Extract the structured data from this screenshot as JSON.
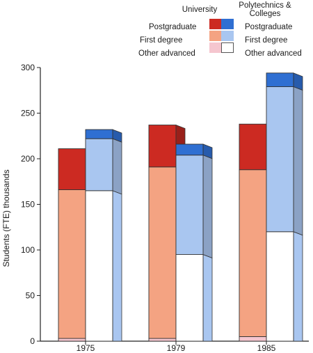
{
  "chart_data": {
    "type": "bar",
    "ylabel": "Students (FTE) thousands",
    "ylim": [
      0,
      300
    ],
    "yticks": [
      0,
      50,
      100,
      150,
      200,
      250,
      300
    ],
    "categories": [
      "1975",
      "1979",
      "1985"
    ],
    "groups": [
      {
        "name": "University",
        "stacks": [
          {
            "name": "Other advanced",
            "values": [
              3,
              3,
              5
            ],
            "color": "#f5c6cf"
          },
          {
            "name": "First degree",
            "values": [
              163,
              188,
              183
            ],
            "color": "#f4a382"
          },
          {
            "name": "Postgraduate",
            "values": [
              45,
              46,
              50
            ],
            "color": "#cc2a22"
          }
        ]
      },
      {
        "name": "Polytechnics & Colleges",
        "stacks": [
          {
            "name": "Other advanced",
            "values": [
              165,
              95,
              120
            ],
            "color": "#ffffff"
          },
          {
            "name": "First degree",
            "values": [
              57,
              109,
              159
            ],
            "color": "#a9c6f0"
          },
          {
            "name": "Postgraduate",
            "values": [
              10,
              12,
              15
            ],
            "color": "#2f6fd2"
          }
        ]
      }
    ],
    "legend": {
      "position": "top-right",
      "col_headers": [
        "University",
        "Polytechnics &\nColleges"
      ],
      "left_labels": [
        "Postgraduate",
        "First degree",
        "Other advanced"
      ],
      "right_labels": [
        "Postgraduate",
        "First degree",
        "Other advanced"
      ]
    }
  }
}
